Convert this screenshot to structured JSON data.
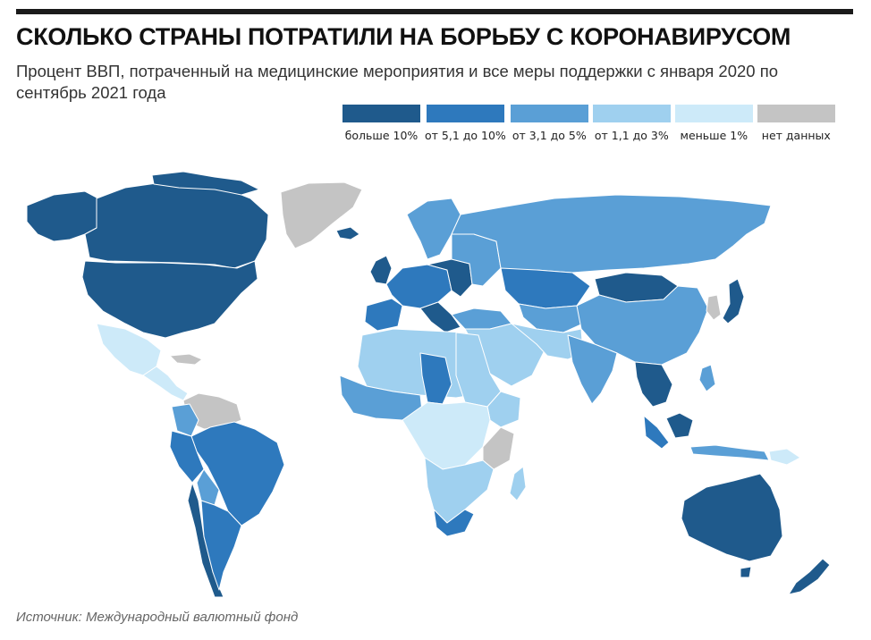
{
  "title": "СКОЛЬКО СТРАНЫ ПОТРАТИЛИ НА БОРЬБУ С КОРОНАВИРУСОМ",
  "subtitle": "Процент ВВП, потраченный на медицинские мероприятия и все меры поддержки с января 2020 по сентябрь 2021 года",
  "source": "Источник: Международный валютный фонд",
  "legend": [
    {
      "label": "больше 10%",
      "color": "#1f5a8c",
      "width": 87
    },
    {
      "label": "от 5,1 до 10%",
      "color": "#2e79bd",
      "width": 87
    },
    {
      "label": "от 3,1 до 5%",
      "color": "#5a9fd6",
      "width": 87
    },
    {
      "label": "от 1,1 до 3%",
      "color": "#9fd0ef",
      "width": 87
    },
    {
      "label": "меньше 1%",
      "color": "#cdeaf9",
      "width": 87
    },
    {
      "label": "нет данных",
      "color": "#c4c4c4",
      "width": 87
    }
  ],
  "colors": {
    "c1": "#1f5a8c",
    "c2": "#2e79bd",
    "c3": "#5a9fd6",
    "c4": "#9fd0ef",
    "c5": "#cdeaf9",
    "nd": "#c4c4c4",
    "border": "#ffffff"
  }
}
